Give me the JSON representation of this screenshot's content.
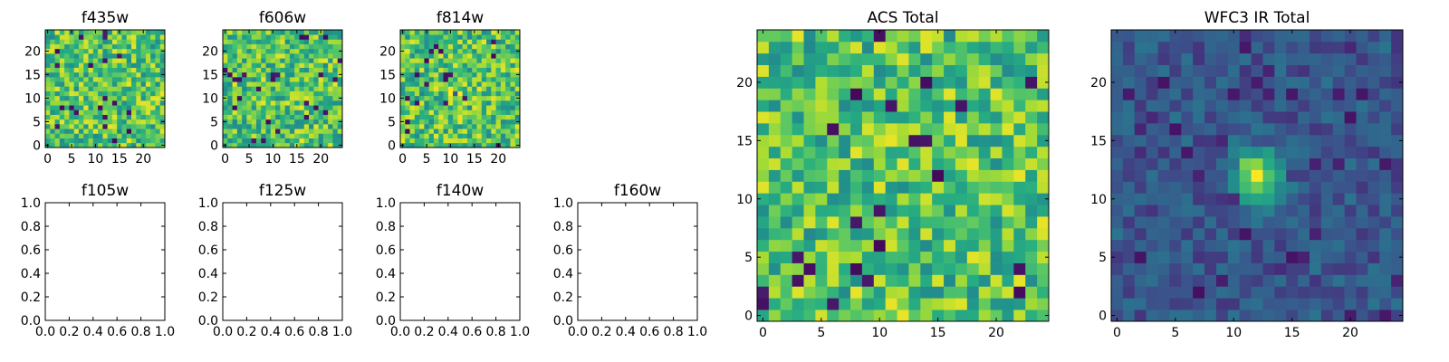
{
  "figure": {
    "panels": [
      {
        "id": "f435w",
        "title": "f435w",
        "kind": "image",
        "seed": 11,
        "source_blob": false
      },
      {
        "id": "f606w",
        "title": "f606w",
        "kind": "image",
        "seed": 23,
        "source_blob": false
      },
      {
        "id": "f814w",
        "title": "f814w",
        "kind": "image",
        "seed": 37,
        "source_blob": true
      },
      {
        "id": "f105w",
        "title": "f105w",
        "kind": "empty"
      },
      {
        "id": "f125w",
        "title": "f125w",
        "kind": "empty"
      },
      {
        "id": "f140w",
        "title": "f140w",
        "kind": "empty"
      },
      {
        "id": "f160w",
        "title": "f160w",
        "kind": "empty"
      },
      {
        "id": "acs-total",
        "title": "ACS Total",
        "kind": "image",
        "seed": 51,
        "source_blob": false
      },
      {
        "id": "wfc3-ir-total",
        "title": "WFC3 IR Total",
        "kind": "image",
        "seed": 73,
        "source_blob": true
      }
    ]
  },
  "chart_data": [
    {
      "type": "heatmap",
      "title": "f435w",
      "grid_size": [
        25,
        25
      ],
      "xlim": [
        -0.5,
        24.5
      ],
      "ylim": [
        -0.5,
        24.5
      ],
      "x_ticks": [
        "0",
        "5",
        "10",
        "15",
        "20"
      ],
      "y_ticks": [
        "0",
        "5",
        "10",
        "15",
        "20"
      ],
      "colormap": "viridis"
    },
    {
      "type": "heatmap",
      "title": "f606w",
      "grid_size": [
        25,
        25
      ],
      "xlim": [
        -0.5,
        24.5
      ],
      "ylim": [
        -0.5,
        24.5
      ],
      "x_ticks": [
        "0",
        "5",
        "10",
        "15",
        "20"
      ],
      "y_ticks": [
        "0",
        "5",
        "10",
        "15",
        "20"
      ],
      "colormap": "viridis"
    },
    {
      "type": "heatmap",
      "title": "f814w",
      "grid_size": [
        25,
        25
      ],
      "xlim": [
        -0.5,
        24.5
      ],
      "ylim": [
        -0.5,
        24.5
      ],
      "x_ticks": [
        "0",
        "5",
        "10",
        "15",
        "20"
      ],
      "y_ticks": [
        "0",
        "5",
        "10",
        "15",
        "20"
      ],
      "colormap": "viridis"
    },
    {
      "type": "empty",
      "title": "f105w",
      "xlim": [
        0,
        1
      ],
      "ylim": [
        0,
        1
      ],
      "x_ticks": [
        "0.0",
        "0.2",
        "0.4",
        "0.6",
        "0.8",
        "1.0"
      ],
      "y_ticks": [
        "0.0",
        "0.2",
        "0.4",
        "0.6",
        "0.8",
        "1.0"
      ]
    },
    {
      "type": "empty",
      "title": "f125w",
      "xlim": [
        0,
        1
      ],
      "ylim": [
        0,
        1
      ],
      "x_ticks": [
        "0.0",
        "0.2",
        "0.4",
        "0.6",
        "0.8",
        "1.0"
      ],
      "y_ticks": [
        "0.0",
        "0.2",
        "0.4",
        "0.6",
        "0.8",
        "1.0"
      ]
    },
    {
      "type": "empty",
      "title": "f140w",
      "xlim": [
        0,
        1
      ],
      "ylim": [
        0,
        1
      ],
      "x_ticks": [
        "0.0",
        "0.2",
        "0.4",
        "0.6",
        "0.8",
        "1.0"
      ],
      "y_ticks": [
        "0.0",
        "0.2",
        "0.4",
        "0.6",
        "0.8",
        "1.0"
      ]
    },
    {
      "type": "empty",
      "title": "f160w",
      "xlim": [
        0,
        1
      ],
      "ylim": [
        0,
        1
      ],
      "x_ticks": [
        "0.0",
        "0.2",
        "0.4",
        "0.6",
        "0.8",
        "1.0"
      ],
      "y_ticks": [
        "0.0",
        "0.2",
        "0.4",
        "0.6",
        "0.8",
        "1.0"
      ]
    },
    {
      "type": "heatmap",
      "title": "ACS Total",
      "grid_size": [
        25,
        25
      ],
      "xlim": [
        -0.5,
        24.5
      ],
      "ylim": [
        -0.5,
        24.5
      ],
      "x_ticks": [
        "0",
        "5",
        "10",
        "15",
        "20"
      ],
      "y_ticks": [
        "0",
        "5",
        "10",
        "15",
        "20"
      ],
      "colormap": "viridis"
    },
    {
      "type": "heatmap",
      "title": "WFC3 IR Total",
      "grid_size": [
        25,
        25
      ],
      "xlim": [
        -0.5,
        24.5
      ],
      "ylim": [
        -0.5,
        24.5
      ],
      "x_ticks": [
        "0",
        "5",
        "10",
        "15",
        "20"
      ],
      "y_ticks": [
        "0",
        "5",
        "10",
        "15",
        "20"
      ],
      "colormap": "viridis",
      "bright_source_center": [
        12,
        12
      ]
    }
  ]
}
